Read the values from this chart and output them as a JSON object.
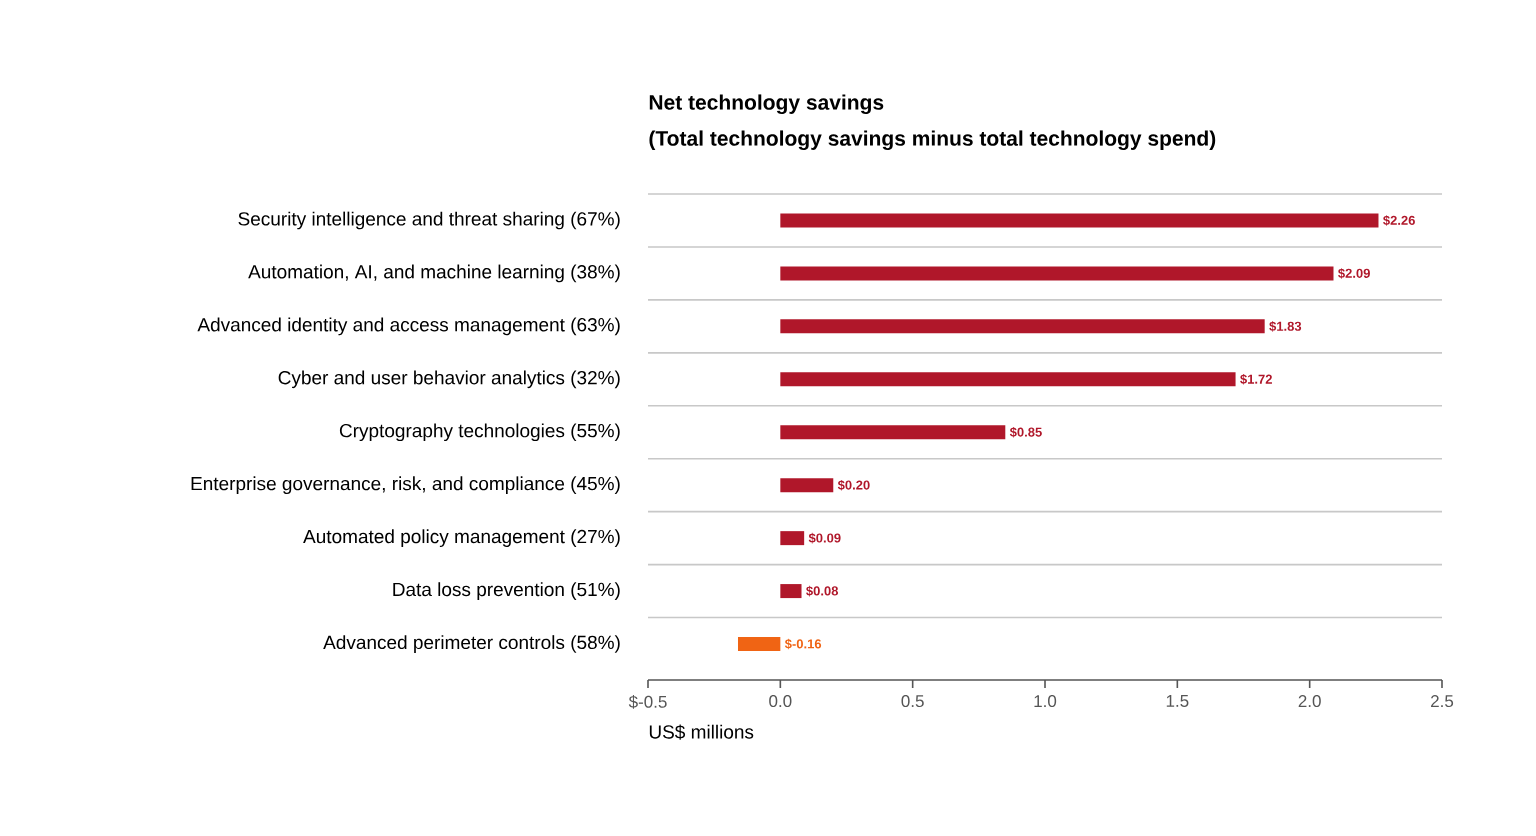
{
  "chart_data": {
    "type": "bar",
    "orientation": "horizontal",
    "title": "Net technology savings",
    "subtitle": "(Total technology savings minus total technology spend)",
    "xlabel": "US$ millions",
    "categories": [
      "Security intelligence and threat sharing (67%)",
      "Automation, AI, and machine learning (38%)",
      "Advanced identity and access management (63%)",
      "Cyber and user behavior analytics (32%)",
      "Cryptography technologies (55%)",
      "Enterprise governance, risk, and compliance (45%)",
      "Automated policy management (27%)",
      "Data loss prevention (51%)",
      "Advanced perimeter controls (58%)"
    ],
    "values": [
      2.26,
      2.09,
      1.83,
      1.72,
      0.85,
      0.2,
      0.09,
      0.08,
      -0.16
    ],
    "value_labels": [
      "$2.26",
      "$2.09",
      "$1.83",
      "$1.72",
      "$0.85",
      "$0.20",
      "$0.09",
      "$0.08",
      "$-0.16"
    ],
    "colors": [
      "#b0172a",
      "#b0172a",
      "#b0172a",
      "#b0172a",
      "#b0172a",
      "#b0172a",
      "#b0172a",
      "#b0172a",
      "#f06414"
    ],
    "xlim": [
      -0.5,
      2.5
    ],
    "xticks": [
      {
        "value": -0.5,
        "label": "$-0.5"
      },
      {
        "value": 0,
        "label": "0.0"
      },
      {
        "value": 0.5,
        "label": "0.5"
      },
      {
        "value": 1,
        "label": "1.0"
      },
      {
        "value": 1.5,
        "label": "1.5"
      },
      {
        "value": 2,
        "label": "2.0"
      },
      {
        "value": 2.5,
        "label": "2.5"
      }
    ],
    "grid": "y"
  }
}
